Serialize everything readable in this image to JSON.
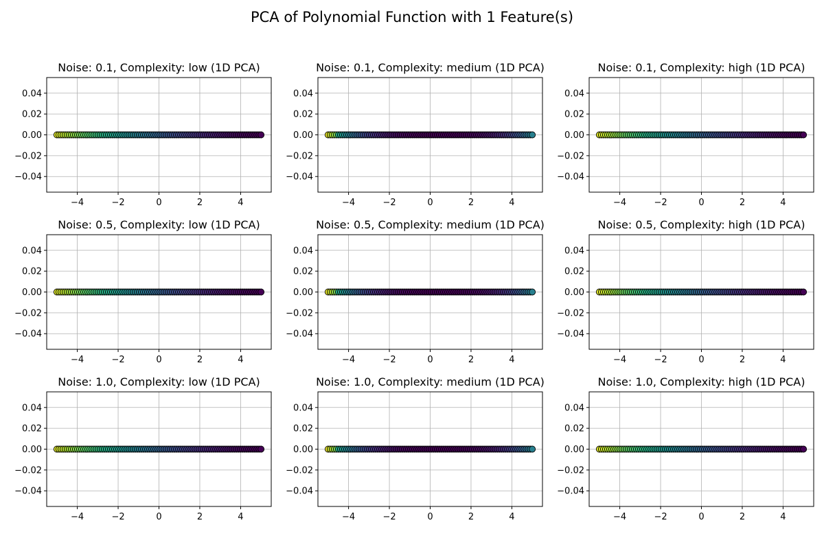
{
  "figure": {
    "title": "PCA of Polynomial Function with 1 Feature(s)"
  },
  "colors": {
    "grid": "#b0b0b0",
    "spine": "#000000",
    "marker_edge": "#000000",
    "colormap": "viridis"
  },
  "chart_data": [
    {
      "type": "scatter",
      "title": "Noise: 0.1, Complexity: low (1D PCA)",
      "noise": 0.1,
      "complexity": "low",
      "xlim": [
        -5.5,
        5.5
      ],
      "ylim": [
        -0.055,
        0.055
      ],
      "xticks": [
        -4,
        -2,
        0,
        2,
        4
      ],
      "xtick_labels": [
        "−4",
        "−2",
        "0",
        "2",
        "4"
      ],
      "yticks": [
        -0.04,
        -0.02,
        0.0,
        0.02,
        0.04
      ],
      "ytick_labels": [
        "−0.04",
        "−0.02",
        "0.00",
        "0.02",
        "0.04"
      ],
      "x_range": [
        -5,
        5
      ],
      "n_points": 100,
      "y_values": "all 0.0",
      "color_trend": "bright at low x (left), dark at high x (right)",
      "grid": true
    },
    {
      "type": "scatter",
      "title": "Noise: 0.1, Complexity: medium (1D PCA)",
      "noise": 0.1,
      "complexity": "medium",
      "xlim": [
        -5.5,
        5.5
      ],
      "ylim": [
        -0.055,
        0.055
      ],
      "xticks": [
        -4,
        -2,
        0,
        2,
        4
      ],
      "xtick_labels": [
        "−4",
        "−2",
        "0",
        "2",
        "4"
      ],
      "yticks": [
        -0.04,
        -0.02,
        0.0,
        0.02,
        0.04
      ],
      "ytick_labels": [
        "−0.04",
        "−0.02",
        "0.00",
        "0.02",
        "0.04"
      ],
      "x_range": [
        -5,
        5
      ],
      "n_points": 100,
      "y_values": "all 0.0",
      "color_trend": "bright at left end, dark in middle, teal-green at right end",
      "grid": true
    },
    {
      "type": "scatter",
      "title": "Noise: 0.1, Complexity: high (1D PCA)",
      "noise": 0.1,
      "complexity": "high",
      "xlim": [
        -5.5,
        5.5
      ],
      "ylim": [
        -0.055,
        0.055
      ],
      "xticks": [
        -4,
        -2,
        0,
        2,
        4
      ],
      "xtick_labels": [
        "−4",
        "−2",
        "0",
        "2",
        "4"
      ],
      "yticks": [
        -0.04,
        -0.02,
        0.0,
        0.02,
        0.04
      ],
      "ytick_labels": [
        "−0.04",
        "−0.02",
        "0.00",
        "0.02",
        "0.04"
      ],
      "x_range": [
        -5,
        5
      ],
      "n_points": 100,
      "y_values": "all 0.0",
      "color_trend": "bright at low x (left), dark at high x (right)",
      "grid": true
    },
    {
      "type": "scatter",
      "title": "Noise: 0.5, Complexity: low (1D PCA)",
      "noise": 0.5,
      "complexity": "low",
      "xlim": [
        -5.5,
        5.5
      ],
      "ylim": [
        -0.055,
        0.055
      ],
      "xticks": [
        -4,
        -2,
        0,
        2,
        4
      ],
      "xtick_labels": [
        "−4",
        "−2",
        "0",
        "2",
        "4"
      ],
      "yticks": [
        -0.04,
        -0.02,
        0.0,
        0.02,
        0.04
      ],
      "ytick_labels": [
        "−0.04",
        "−0.02",
        "0.00",
        "0.02",
        "0.04"
      ],
      "x_range": [
        -5,
        5
      ],
      "n_points": 100,
      "y_values": "all 0.0",
      "color_trend": "bright at low x (left), dark at high x (right)",
      "grid": true
    },
    {
      "type": "scatter",
      "title": "Noise: 0.5, Complexity: medium (1D PCA)",
      "noise": 0.5,
      "complexity": "medium",
      "xlim": [
        -5.5,
        5.5
      ],
      "ylim": [
        -0.055,
        0.055
      ],
      "xticks": [
        -4,
        -2,
        0,
        2,
        4
      ],
      "xtick_labels": [
        "−4",
        "−2",
        "0",
        "2",
        "4"
      ],
      "yticks": [
        -0.04,
        -0.02,
        0.0,
        0.02,
        0.04
      ],
      "ytick_labels": [
        "−0.04",
        "−0.02",
        "0.00",
        "0.02",
        "0.04"
      ],
      "x_range": [
        -5,
        5
      ],
      "n_points": 100,
      "y_values": "all 0.0",
      "color_trend": "bright at left end, dark in middle, teal-green at right end",
      "grid": true
    },
    {
      "type": "scatter",
      "title": "Noise: 0.5, Complexity: high (1D PCA)",
      "noise": 0.5,
      "complexity": "high",
      "xlim": [
        -5.5,
        5.5
      ],
      "ylim": [
        -0.055,
        0.055
      ],
      "xticks": [
        -4,
        -2,
        0,
        2,
        4
      ],
      "xtick_labels": [
        "−4",
        "−2",
        "0",
        "2",
        "4"
      ],
      "yticks": [
        -0.04,
        -0.02,
        0.0,
        0.02,
        0.04
      ],
      "ytick_labels": [
        "−0.04",
        "−0.02",
        "0.00",
        "0.02",
        "0.04"
      ],
      "x_range": [
        -5,
        5
      ],
      "n_points": 100,
      "y_values": "all 0.0",
      "color_trend": "bright at low x (left), dark at high x (right)",
      "grid": true
    },
    {
      "type": "scatter",
      "title": "Noise: 1.0, Complexity: low (1D PCA)",
      "noise": 1.0,
      "complexity": "low",
      "xlim": [
        -5.5,
        5.5
      ],
      "ylim": [
        -0.055,
        0.055
      ],
      "xticks": [
        -4,
        -2,
        0,
        2,
        4
      ],
      "xtick_labels": [
        "−4",
        "−2",
        "0",
        "2",
        "4"
      ],
      "yticks": [
        -0.04,
        -0.02,
        0.0,
        0.02,
        0.04
      ],
      "ytick_labels": [
        "−0.04",
        "−0.02",
        "0.00",
        "0.02",
        "0.04"
      ],
      "x_range": [
        -5,
        5
      ],
      "n_points": 100,
      "y_values": "all 0.0",
      "color_trend": "bright at low x (left), dark at high x (right)",
      "grid": true
    },
    {
      "type": "scatter",
      "title": "Noise: 1.0, Complexity: medium (1D PCA)",
      "noise": 1.0,
      "complexity": "medium",
      "xlim": [
        -5.5,
        5.5
      ],
      "ylim": [
        -0.055,
        0.055
      ],
      "xticks": [
        -4,
        -2,
        0,
        2,
        4
      ],
      "xtick_labels": [
        "−4",
        "−2",
        "0",
        "2",
        "4"
      ],
      "yticks": [
        -0.04,
        -0.02,
        0.0,
        0.02,
        0.04
      ],
      "ytick_labels": [
        "−0.04",
        "−0.02",
        "0.00",
        "0.02",
        "0.04"
      ],
      "x_range": [
        -5,
        5
      ],
      "n_points": 100,
      "y_values": "all 0.0",
      "color_trend": "bright at left end, dark in middle, teal-green at right end",
      "grid": true
    },
    {
      "type": "scatter",
      "title": "Noise: 1.0, Complexity: high (1D PCA)",
      "noise": 1.0,
      "complexity": "high",
      "xlim": [
        -5.5,
        5.5
      ],
      "ylim": [
        -0.055,
        0.055
      ],
      "xticks": [
        -4,
        -2,
        0,
        2,
        4
      ],
      "xtick_labels": [
        "−4",
        "−2",
        "0",
        "2",
        "4"
      ],
      "yticks": [
        -0.04,
        -0.02,
        0.0,
        0.02,
        0.04
      ],
      "ytick_labels": [
        "−0.04",
        "−0.02",
        "0.00",
        "0.02",
        "0.04"
      ],
      "x_range": [
        -5,
        5
      ],
      "n_points": 100,
      "y_values": "all 0.0",
      "color_trend": "bright at low x (left), dark at high x (right)",
      "grid": true
    }
  ]
}
